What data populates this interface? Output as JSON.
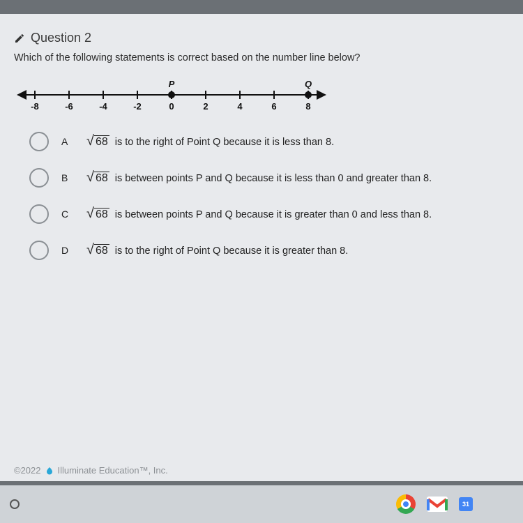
{
  "question": {
    "number_label": "Question 2",
    "prompt": "Which of the following statements is correct based on the number line below?"
  },
  "numberline": {
    "min": -8,
    "max": 8,
    "ticks": [
      -8,
      -6,
      -4,
      -2,
      0,
      2,
      4,
      6,
      8
    ],
    "tick_labels": [
      "-8",
      "-6",
      "-4",
      "-2",
      "0",
      "2",
      "4",
      "6",
      "8"
    ],
    "points": [
      {
        "label": "P",
        "value": 0
      },
      {
        "label": "Q",
        "value": 8
      }
    ],
    "axis_color": "#111111",
    "label_fontsize": 13
  },
  "sqrt_radicand": "68",
  "options": [
    {
      "letter": "A",
      "pre": "",
      "post": " is to the right of Point Q because it is less than 8."
    },
    {
      "letter": "B",
      "pre": "",
      "post": " is between points P and Q because it is less than 0 and greater than 8."
    },
    {
      "letter": "C",
      "pre": "",
      "post": " is between points P and Q because it is greater than 0 and less than 8."
    },
    {
      "letter": "D",
      "pre": "",
      "post": " is to the right of Point Q because it is greater than 8."
    }
  ],
  "footer": {
    "copyright": "©2022",
    "brand": "Illuminate Education™, Inc."
  },
  "taskbar": {
    "calendar_badge": "31"
  },
  "colors": {
    "page_bg": "#e8eaed",
    "desk_bg": "#6b7075",
    "text": "#222222",
    "muted": "#8c9094",
    "radio_border": "#8a8f94"
  }
}
